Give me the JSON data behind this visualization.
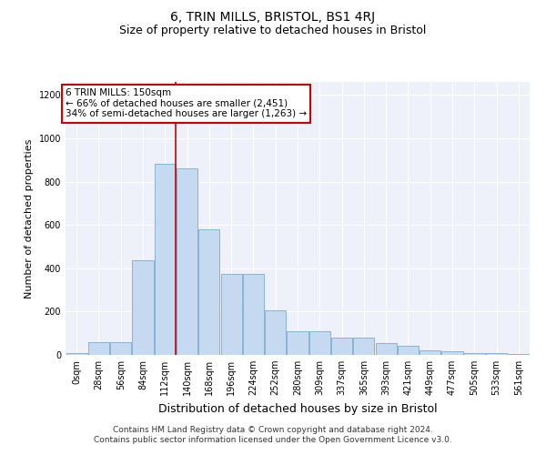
{
  "title": "6, TRIN MILLS, BRISTOL, BS1 4RJ",
  "subtitle": "Size of property relative to detached houses in Bristol",
  "xlabel": "Distribution of detached houses by size in Bristol",
  "ylabel": "Number of detached properties",
  "bar_color": "#c5d9f1",
  "bar_edge_color": "#7aabcf",
  "categories": [
    "0sqm",
    "28sqm",
    "56sqm",
    "84sqm",
    "112sqm",
    "140sqm",
    "168sqm",
    "196sqm",
    "224sqm",
    "252sqm",
    "280sqm",
    "309sqm",
    "337sqm",
    "365sqm",
    "393sqm",
    "421sqm",
    "449sqm",
    "477sqm",
    "505sqm",
    "533sqm",
    "561sqm"
  ],
  "values": [
    10,
    60,
    60,
    435,
    880,
    860,
    580,
    375,
    375,
    205,
    110,
    110,
    80,
    80,
    55,
    42,
    22,
    15,
    8,
    8,
    5
  ],
  "vline_pos": 5.0,
  "annotation_line1": "6 TRIN MILLS: 150sqm",
  "annotation_line2": "← 66% of detached houses are smaller (2,451)",
  "annotation_line3": "34% of semi-detached houses are larger (1,263) →",
  "annotation_box_facecolor": "#ffffff",
  "annotation_box_edgecolor": "#cc0000",
  "vline_color": "#cc0000",
  "ylim": [
    0,
    1260
  ],
  "yticks": [
    0,
    200,
    400,
    600,
    800,
    1000,
    1200
  ],
  "plot_bg_color": "#eef1fa",
  "footer_line1": "Contains HM Land Registry data © Crown copyright and database right 2024.",
  "footer_line2": "Contains public sector information licensed under the Open Government Licence v3.0.",
  "title_fontsize": 10,
  "subtitle_fontsize": 9,
  "xlabel_fontsize": 9,
  "ylabel_fontsize": 8,
  "tick_fontsize": 7,
  "annotation_fontsize": 7.5,
  "footer_fontsize": 6.5
}
